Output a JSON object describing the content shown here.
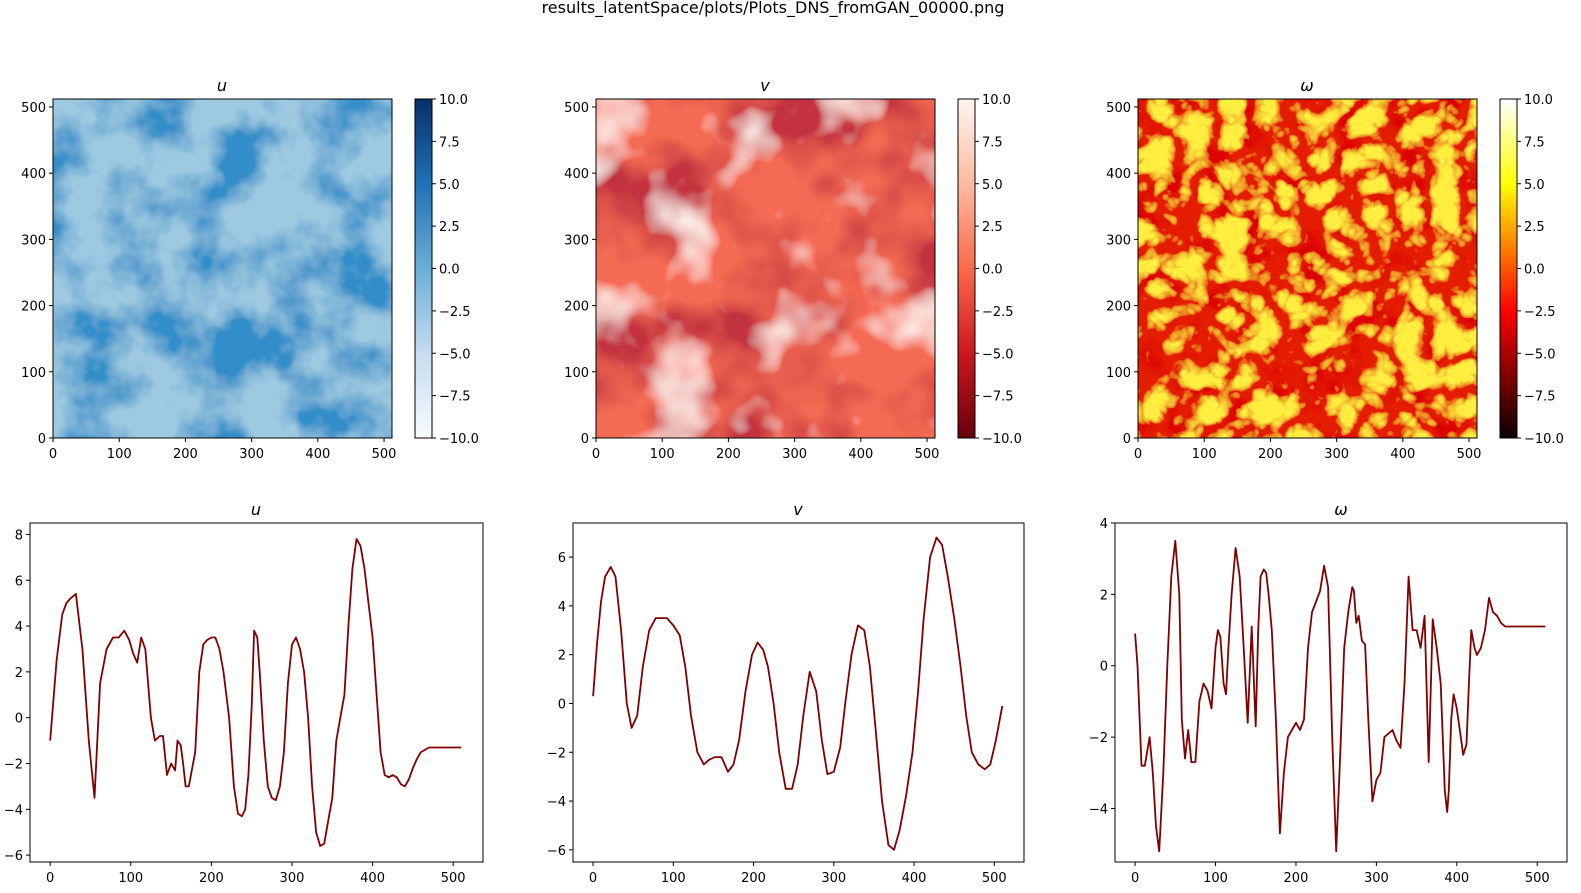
{
  "figure": {
    "suptitle": "results_latentSpace/plots/Plots_DNS_fromGAN_00000.png"
  },
  "colors": {
    "line": "#800000",
    "axes": "#000000"
  },
  "chart_data": [
    {
      "type": "heatmap",
      "title": "u",
      "colormap": "Blues",
      "xlim": [
        0,
        512
      ],
      "ylim": [
        0,
        512
      ],
      "xticks": [
        0,
        100,
        200,
        300,
        400,
        500
      ],
      "yticks": [
        0,
        100,
        200,
        300,
        400,
        500
      ],
      "clim": [
        -10,
        10
      ],
      "colorbar_ticks": [
        "10.0",
        "7.5",
        "5.0",
        "2.5",
        "0.0",
        "−2.5",
        "−5.0",
        "−7.5",
        "−10.0"
      ]
    },
    {
      "type": "heatmap",
      "title": "v",
      "colormap": "Reds_r",
      "xlim": [
        0,
        512
      ],
      "ylim": [
        0,
        512
      ],
      "xticks": [
        0,
        100,
        200,
        300,
        400,
        500
      ],
      "yticks": [
        0,
        100,
        200,
        300,
        400,
        500
      ],
      "clim": [
        -10,
        10
      ],
      "colorbar_ticks": [
        "10.0",
        "7.5",
        "5.0",
        "2.5",
        "0.0",
        "−2.5",
        "−5.0",
        "−7.5",
        "−10.0"
      ]
    },
    {
      "type": "heatmap",
      "title": "ω",
      "colormap": "hot",
      "xlim": [
        0,
        512
      ],
      "ylim": [
        0,
        512
      ],
      "xticks": [
        0,
        100,
        200,
        300,
        400,
        500
      ],
      "yticks": [
        0,
        100,
        200,
        300,
        400,
        500
      ],
      "clim": [
        -10,
        10
      ],
      "colorbar_ticks": [
        "10.0",
        "7.5",
        "5.0",
        "2.5",
        "0.0",
        "−2.5",
        "−5.0",
        "−7.5",
        "−10.0"
      ]
    },
    {
      "type": "line",
      "title": "u",
      "xlim": [
        -25,
        537
      ],
      "ylim": [
        -6.3,
        8.5
      ],
      "xticks": [
        0,
        100,
        200,
        300,
        400,
        500
      ],
      "yticks": [
        -6,
        -4,
        -2,
        0,
        2,
        4,
        6,
        8
      ],
      "series": [
        {
          "x": [
            0,
            8,
            15,
            20,
            25,
            32,
            40,
            48,
            55,
            62,
            70,
            78,
            85,
            92,
            98,
            103,
            108,
            113,
            118,
            125,
            130,
            136,
            140,
            145,
            150,
            155,
            158,
            162,
            165,
            168,
            172,
            180,
            185,
            190,
            195,
            200,
            205,
            210,
            215,
            222,
            228,
            233,
            238,
            242,
            246,
            250,
            253,
            257,
            260,
            265,
            270,
            275,
            280,
            285,
            290,
            295,
            300,
            305,
            310,
            315,
            320,
            325,
            330,
            335,
            340,
            345,
            350,
            355,
            360,
            365,
            370,
            375,
            380,
            385,
            390,
            395,
            400,
            405,
            410,
            415,
            420,
            425,
            430,
            435,
            440,
            445,
            450,
            455,
            460,
            465,
            470,
            475,
            480,
            485,
            490,
            495,
            500,
            505,
            510
          ],
          "y": [
            -1.0,
            2.5,
            4.5,
            5.0,
            5.2,
            5.4,
            3.0,
            -1.0,
            -3.5,
            1.5,
            3.0,
            3.5,
            3.5,
            3.8,
            3.4,
            2.8,
            2.4,
            3.5,
            3.0,
            0.0,
            -1.0,
            -0.8,
            -0.8,
            -2.5,
            -2.0,
            -2.3,
            -1.0,
            -1.2,
            -2.0,
            -3.0,
            -3.0,
            -1.5,
            2.0,
            3.2,
            3.4,
            3.5,
            3.5,
            3.0,
            2.0,
            0.0,
            -3.0,
            -4.2,
            -4.3,
            -4.0,
            -2.5,
            0.5,
            3.8,
            3.5,
            2.0,
            -1.0,
            -3.0,
            -3.5,
            -3.6,
            -3.0,
            -1.5,
            1.5,
            3.2,
            3.5,
            3.0,
            2.0,
            0.0,
            -3.0,
            -5.0,
            -5.6,
            -5.5,
            -4.5,
            -3.5,
            -1.0,
            0.0,
            1.0,
            4.0,
            6.5,
            7.8,
            7.5,
            6.5,
            5.0,
            3.5,
            1.0,
            -1.5,
            -2.5,
            -2.6,
            -2.5,
            -2.6,
            -2.9,
            -3.0,
            -2.7,
            -2.2,
            -1.8,
            -1.5,
            -1.4,
            -1.3,
            -1.3,
            -1.3,
            -1.3,
            -1.3,
            -1.3,
            -1.3,
            -1.3,
            -1.3
          ],
          "name": ""
        }
      ]
    },
    {
      "type": "line",
      "title": "v",
      "xlim": [
        -25,
        537
      ],
      "ylim": [
        -6.5,
        7.4
      ],
      "xticks": [
        0,
        100,
        200,
        300,
        400,
        500
      ],
      "yticks": [
        -6,
        -4,
        -2,
        0,
        2,
        4,
        6
      ],
      "series": [
        {
          "x": [
            0,
            5,
            10,
            15,
            22,
            28,
            35,
            42,
            48,
            55,
            62,
            70,
            78,
            85,
            92,
            100,
            108,
            115,
            122,
            130,
            138,
            145,
            152,
            160,
            168,
            175,
            182,
            190,
            198,
            205,
            212,
            218,
            225,
            232,
            240,
            248,
            255,
            262,
            270,
            278,
            285,
            292,
            300,
            308,
            315,
            322,
            330,
            338,
            345,
            352,
            360,
            368,
            375,
            382,
            390,
            398,
            405,
            412,
            420,
            428,
            435,
            442,
            450,
            458,
            465,
            472,
            480,
            488,
            495,
            502,
            510
          ],
          "y": [
            0.3,
            2.5,
            4.2,
            5.2,
            5.6,
            5.2,
            3.0,
            0.0,
            -1.0,
            -0.5,
            1.5,
            3.0,
            3.5,
            3.5,
            3.5,
            3.2,
            2.8,
            1.5,
            -0.5,
            -2.0,
            -2.5,
            -2.3,
            -2.2,
            -2.2,
            -2.8,
            -2.5,
            -1.5,
            0.5,
            2.0,
            2.5,
            2.2,
            1.5,
            0.0,
            -2.0,
            -3.5,
            -3.5,
            -2.5,
            -0.5,
            1.3,
            0.5,
            -1.5,
            -2.9,
            -2.8,
            -1.8,
            0.2,
            2.0,
            3.2,
            3.0,
            1.5,
            -1.0,
            -4.0,
            -5.8,
            -6.0,
            -5.2,
            -3.8,
            -2.0,
            0.5,
            3.5,
            6.0,
            6.8,
            6.5,
            5.2,
            3.5,
            1.5,
            -0.5,
            -2.0,
            -2.5,
            -2.7,
            -2.5,
            -1.5,
            -0.1
          ],
          "name": ""
        }
      ]
    },
    {
      "type": "line",
      "title": "ω",
      "xlim": [
        -25,
        537
      ],
      "ylim": [
        -5.5,
        4.0
      ],
      "xticks": [
        0,
        100,
        200,
        300,
        400,
        500
      ],
      "yticks": [
        -4,
        -2,
        0,
        2,
        4
      ],
      "series": [
        {
          "x": [
            0,
            3,
            8,
            12,
            18,
            22,
            26,
            30,
            35,
            40,
            45,
            50,
            55,
            58,
            62,
            66,
            70,
            75,
            80,
            85,
            90,
            95,
            100,
            103,
            106,
            110,
            113,
            116,
            120,
            125,
            130,
            135,
            140,
            145,
            150,
            153,
            156,
            160,
            163,
            166,
            170,
            175,
            180,
            185,
            190,
            195,
            200,
            205,
            210,
            215,
            220,
            225,
            230,
            235,
            240,
            245,
            250,
            255,
            260,
            265,
            270,
            272,
            275,
            278,
            282,
            286,
            290,
            295,
            300,
            305,
            310,
            315,
            320,
            325,
            330,
            335,
            340,
            345,
            350,
            355,
            360,
            365,
            370,
            375,
            380,
            385,
            388,
            390,
            393,
            396,
            400,
            405,
            408,
            412,
            415,
            418,
            422,
            425,
            430,
            435,
            440,
            445,
            450,
            455,
            460,
            465,
            470,
            475,
            480,
            485,
            490,
            495,
            500,
            505,
            510
          ],
          "y": [
            0.9,
            0.0,
            -2.8,
            -2.8,
            -2.0,
            -3.0,
            -4.5,
            -5.2,
            -3.0,
            0.0,
            2.5,
            3.5,
            2.0,
            -1.5,
            -2.6,
            -1.8,
            -2.7,
            -2.7,
            -1.0,
            -0.5,
            -0.7,
            -1.2,
            0.5,
            1.0,
            0.8,
            -0.5,
            -0.8,
            0.5,
            2.0,
            3.3,
            2.5,
            0.5,
            -1.6,
            1.1,
            -1.7,
            1.0,
            2.5,
            2.7,
            2.6,
            2.0,
            1.0,
            -1.5,
            -4.7,
            -3.0,
            -2.0,
            -1.8,
            -1.6,
            -1.8,
            -1.5,
            0.5,
            1.5,
            1.8,
            2.1,
            2.8,
            2.2,
            -2.0,
            -5.2,
            -2.5,
            0.5,
            1.5,
            2.2,
            2.1,
            1.2,
            1.4,
            0.7,
            0.6,
            -1.5,
            -3.8,
            -3.2,
            -3.0,
            -2.0,
            -1.9,
            -1.8,
            -2.1,
            -2.3,
            -0.5,
            2.5,
            1.0,
            1.0,
            0.5,
            1.4,
            -2.7,
            1.3,
            0.5,
            -0.5,
            -3.5,
            -4.1,
            -3.5,
            -1.5,
            -0.8,
            -1.2,
            -2.0,
            -2.5,
            -2.2,
            -0.5,
            1.0,
            0.5,
            0.3,
            0.5,
            1.0,
            1.9,
            1.5,
            1.4,
            1.2,
            1.1,
            1.1,
            1.1,
            1.1,
            1.1,
            1.1,
            1.1,
            1.1,
            1.1,
            1.1,
            1.1
          ],
          "name": ""
        }
      ]
    }
  ]
}
